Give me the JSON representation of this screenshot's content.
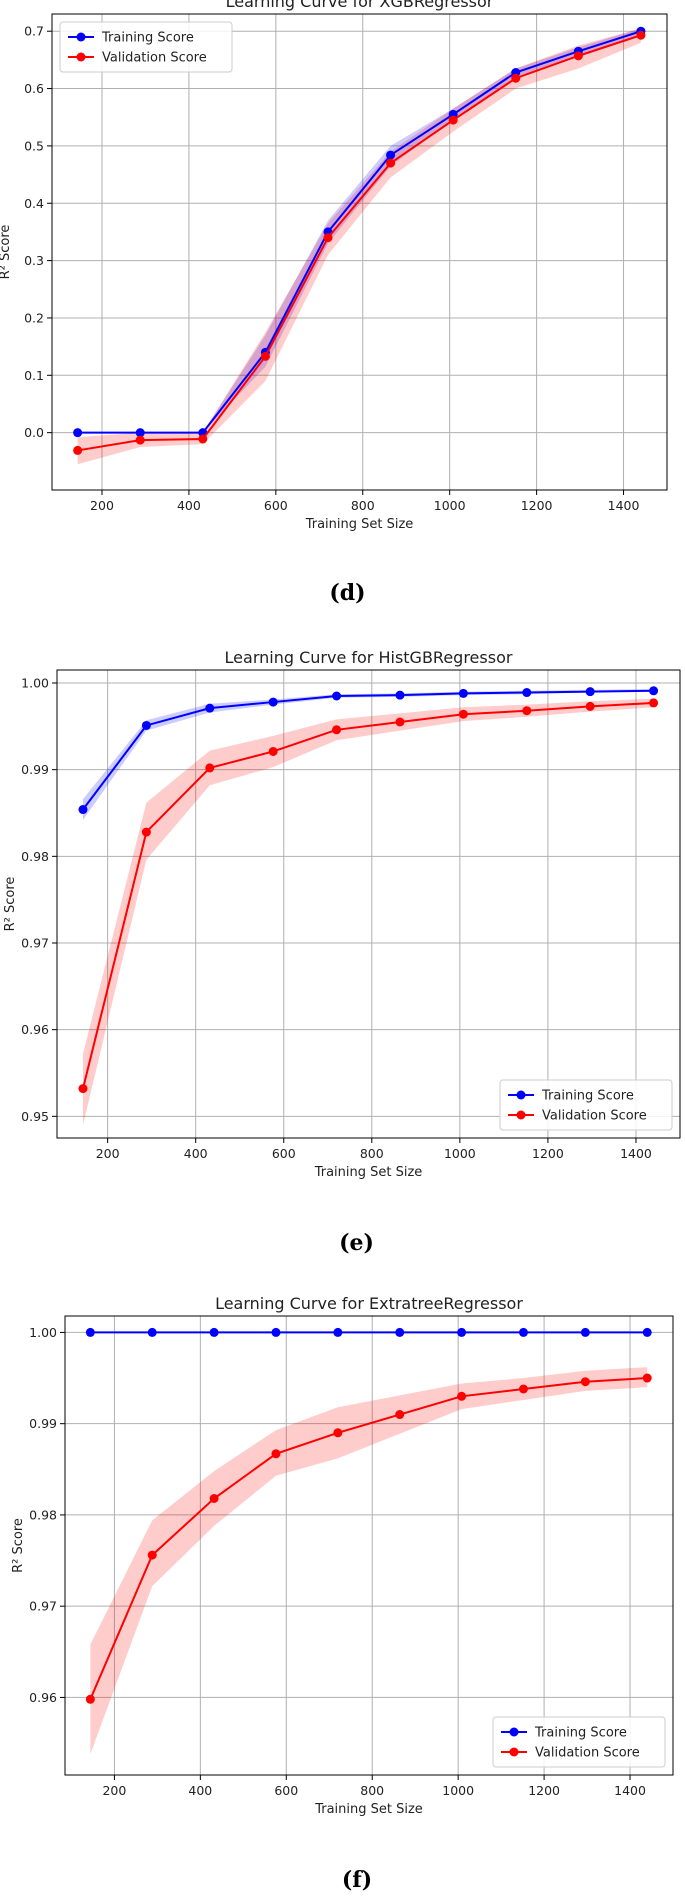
{
  "chart_data": [
    {
      "type": "line",
      "title": "Learning Curve for XGBRegressor",
      "xlabel": "Training Set Size",
      "ylabel": "R² Score",
      "caption": "(d)",
      "x": [
        144,
        288,
        432,
        576,
        720,
        864,
        1008,
        1152,
        1296,
        1440
      ],
      "xlim": [
        85,
        1500
      ],
      "ylim": [
        -0.1,
        0.73
      ],
      "xticks": [
        "200",
        "400",
        "600",
        "800",
        "1000",
        "1200",
        "1400"
      ],
      "yticks": [
        "0.0",
        "0.1",
        "0.2",
        "0.3",
        "0.4",
        "0.5",
        "0.6",
        "0.7"
      ],
      "grid": true,
      "legend_position": "top-left",
      "series": [
        {
          "name": "Training Score",
          "color": "#0000ff",
          "values": [
            0.0,
            0.0,
            0.0,
            0.14,
            0.35,
            0.484,
            0.555,
            0.628,
            0.665,
            0.7
          ],
          "lower": [
            0.0,
            0.0,
            0.0,
            0.115,
            0.33,
            0.465,
            0.545,
            0.62,
            0.655,
            0.695
          ],
          "upper": [
            0.0,
            0.0,
            0.0,
            0.17,
            0.37,
            0.5,
            0.565,
            0.635,
            0.672,
            0.705
          ]
        },
        {
          "name": "Validation Score",
          "color": "#ff0000",
          "values": [
            -0.031,
            -0.013,
            -0.011,
            0.133,
            0.34,
            0.47,
            0.545,
            0.618,
            0.657,
            0.693
          ],
          "lower": [
            -0.055,
            -0.025,
            -0.02,
            0.09,
            0.31,
            0.445,
            0.525,
            0.6,
            0.635,
            0.68
          ],
          "upper": [
            -0.008,
            0.0,
            0.0,
            0.175,
            0.365,
            0.49,
            0.565,
            0.635,
            0.675,
            0.705
          ]
        }
      ]
    },
    {
      "type": "line",
      "title": "Learning Curve for HistGBRegressor",
      "xlabel": "Training Set Size",
      "ylabel": "R² Score",
      "caption": "(e)",
      "x": [
        144,
        288,
        432,
        576,
        720,
        864,
        1008,
        1152,
        1296,
        1440
      ],
      "xlim": [
        85,
        1500
      ],
      "ylim": [
        0.9475,
        1.0015
      ],
      "xticks": [
        "200",
        "400",
        "600",
        "800",
        "1000",
        "1200",
        "1400"
      ],
      "yticks": [
        "0.95",
        "0.96",
        "0.97",
        "0.98",
        "0.99",
        "1.00"
      ],
      "grid": true,
      "legend_position": "bottom-right",
      "series": [
        {
          "name": "Training Score",
          "color": "#0000ff",
          "values": [
            0.9854,
            0.9951,
            0.9971,
            0.9978,
            0.9985,
            0.9986,
            0.9988,
            0.9989,
            0.999,
            0.9991
          ],
          "lower": [
            0.9842,
            0.9945,
            0.9966,
            0.9975,
            0.9983,
            0.9984,
            0.9986,
            0.9987,
            0.9989,
            0.999
          ],
          "upper": [
            0.9866,
            0.9957,
            0.9976,
            0.9981,
            0.9987,
            0.9988,
            0.999,
            0.9991,
            0.9992,
            0.9993
          ]
        },
        {
          "name": "Validation Score",
          "color": "#ff0000",
          "values": [
            0.9532,
            0.9828,
            0.9902,
            0.9921,
            0.9946,
            0.9955,
            0.9964,
            0.9968,
            0.9973,
            0.9977
          ],
          "lower": [
            0.949,
            0.9796,
            0.9882,
            0.9903,
            0.9934,
            0.9945,
            0.9956,
            0.9961,
            0.9967,
            0.9972
          ],
          "upper": [
            0.9572,
            0.9862,
            0.9922,
            0.9939,
            0.9958,
            0.9965,
            0.9972,
            0.9975,
            0.9979,
            0.9982
          ]
        }
      ]
    },
    {
      "type": "line",
      "title": "Learning Curve for ExtratreeRegressor",
      "xlabel": "Training Set Size",
      "ylabel": "R² Score",
      "caption": "(f)",
      "x": [
        144,
        288,
        432,
        576,
        720,
        864,
        1008,
        1152,
        1296,
        1440
      ],
      "xlim": [
        85,
        1500
      ],
      "ylim": [
        0.9515,
        1.0018
      ],
      "xticks": [
        "200",
        "400",
        "600",
        "800",
        "1000",
        "1200",
        "1400"
      ],
      "yticks": [
        "0.96",
        "0.97",
        "0.98",
        "0.99",
        "1.00"
      ],
      "grid": true,
      "legend_position": "bottom-right",
      "series": [
        {
          "name": "Training Score",
          "color": "#0000ff",
          "values": [
            1.0,
            1.0,
            1.0,
            1.0,
            1.0,
            1.0,
            1.0,
            1.0,
            1.0,
            1.0
          ],
          "lower": [
            1.0,
            1.0,
            1.0,
            1.0,
            1.0,
            1.0,
            1.0,
            1.0,
            1.0,
            1.0
          ],
          "upper": [
            1.0,
            1.0,
            1.0,
            1.0,
            1.0,
            1.0,
            1.0,
            1.0,
            1.0,
            1.0
          ]
        },
        {
          "name": "Validation Score",
          "color": "#ff0000",
          "values": [
            0.9598,
            0.9756,
            0.9818,
            0.9867,
            0.989,
            0.991,
            0.993,
            0.9938,
            0.9946,
            0.995
          ],
          "lower": [
            0.9538,
            0.9722,
            0.9788,
            0.9843,
            0.9862,
            0.9889,
            0.9916,
            0.9926,
            0.9936,
            0.994
          ],
          "upper": [
            0.9658,
            0.9794,
            0.9848,
            0.9893,
            0.9918,
            0.9931,
            0.9944,
            0.995,
            0.9958,
            0.9962
          ]
        }
      ]
    }
  ]
}
